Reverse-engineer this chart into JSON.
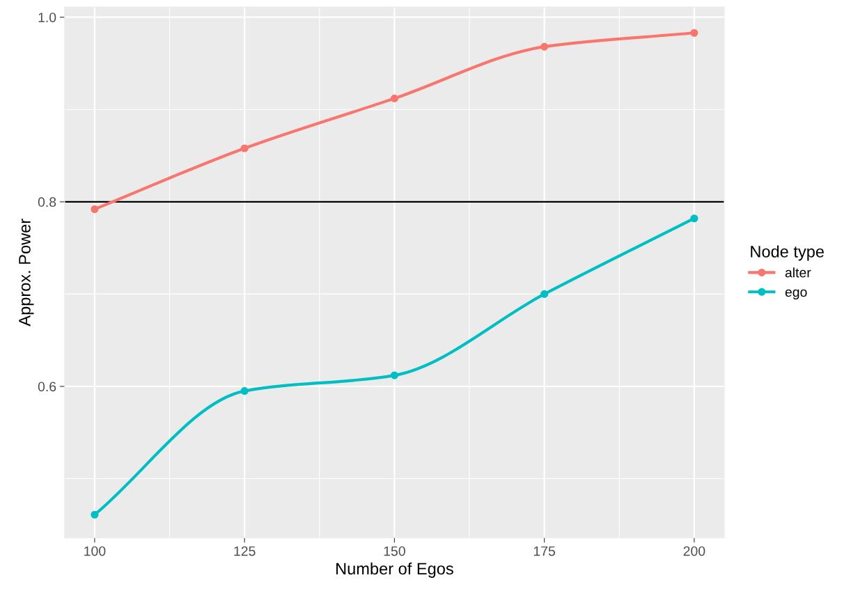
{
  "chart_data": {
    "type": "line",
    "xlabel": "Number of Egos",
    "ylabel": "Approx. Power",
    "legend_title": "Node type",
    "x": [
      100,
      125,
      150,
      175,
      200
    ],
    "series": [
      {
        "name": "alter",
        "color": "#f8766d",
        "values": [
          0.792,
          0.858,
          0.912,
          0.968,
          0.983
        ]
      },
      {
        "name": "ego",
        "color": "#00bfc4",
        "values": [
          0.461,
          0.595,
          0.612,
          0.7,
          0.782
        ]
      }
    ],
    "xlim": [
      95,
      205
    ],
    "xticks": [
      100,
      125,
      150,
      175,
      200
    ],
    "ylim": [
      0.436,
      1.011
    ],
    "yticks": [
      {
        "value": 0.6,
        "label": "0.6"
      },
      {
        "value": 0.8,
        "label": "0.8"
      },
      {
        "value": 1.0,
        "label": "1.0"
      }
    ],
    "ref_lines": [
      {
        "axis": "y",
        "value": 0.8,
        "color": "#000000"
      }
    ],
    "grid": true,
    "legend": "right",
    "marker": "circle",
    "line_style": "solid"
  }
}
